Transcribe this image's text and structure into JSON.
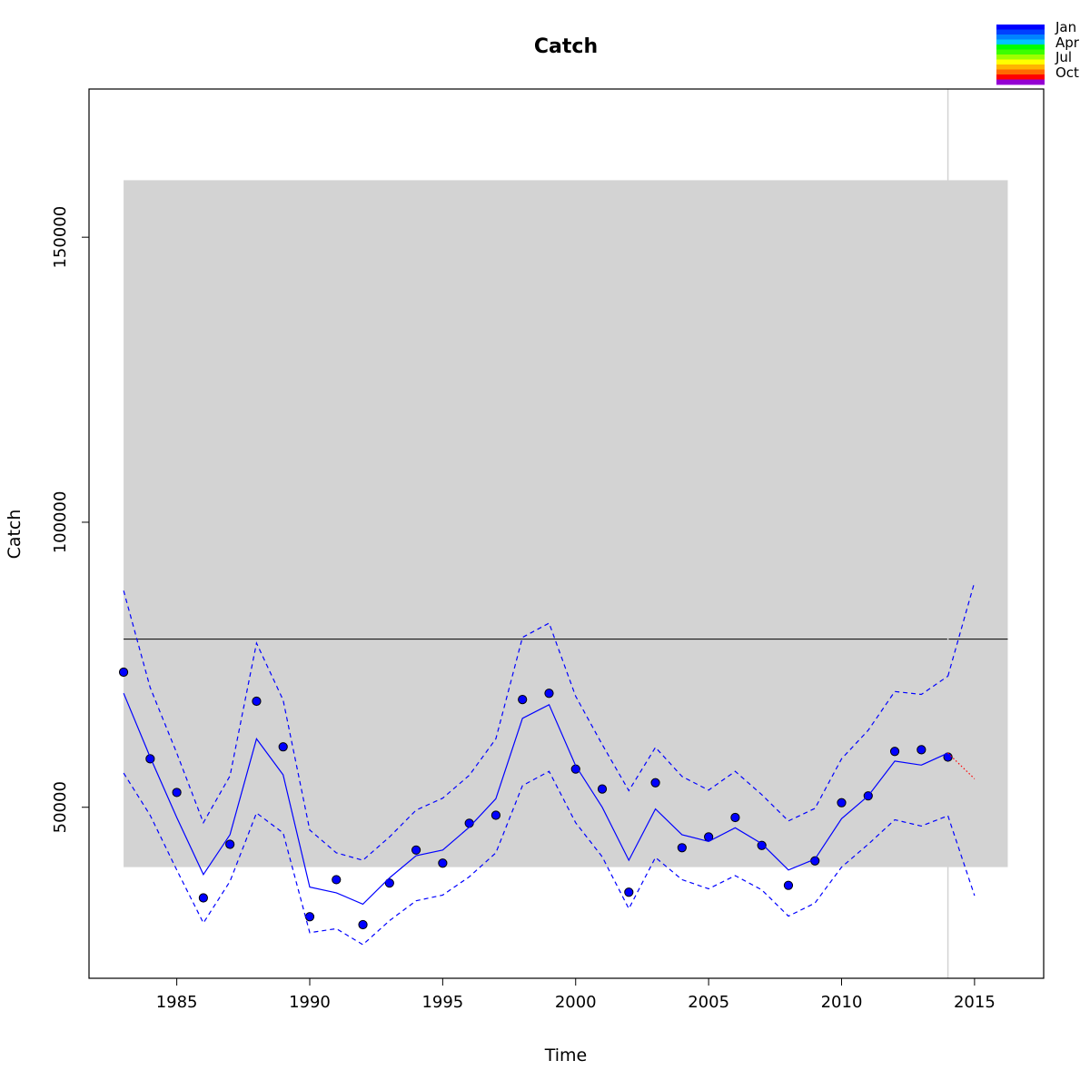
{
  "chart_data": {
    "type": "line",
    "title": "Catch",
    "xlabel": "Time",
    "ylabel": "Catch",
    "xlim": [
      1981.7,
      2017.6
    ],
    "ylim": [
      20000,
      176000
    ],
    "x_ticks": [
      1985,
      1990,
      1995,
      2000,
      2005,
      2010,
      2015
    ],
    "y_ticks": [
      50000,
      100000,
      150000
    ],
    "grid": false,
    "shaded_band": {
      "x": [
        1983,
        2016.25
      ],
      "y": [
        39500,
        160000
      ],
      "color": "#d3d3d3"
    },
    "reference_line": {
      "y": 79500,
      "color": "#000000"
    },
    "vertical_line": {
      "x": 2014,
      "color": "#d3d3d3"
    },
    "series": [
      {
        "role": "observed",
        "style": "points",
        "color": "#0000ff",
        "x": [
          1983,
          1984,
          1985,
          1986,
          1987,
          1988,
          1989,
          1990,
          1991,
          1992,
          1993,
          1994,
          1995,
          1996,
          1997,
          1998,
          1999,
          2000,
          2001,
          2002,
          2003,
          2004,
          2005,
          2006,
          2007,
          2008,
          2009,
          2010,
          2011,
          2012,
          2013,
          2014
        ],
        "values": [
          73700,
          58500,
          52600,
          34100,
          43500,
          68600,
          60600,
          30800,
          37300,
          29400,
          36700,
          42500,
          40200,
          47200,
          48600,
          68900,
          70000,
          56700,
          53200,
          35100,
          54300,
          42900,
          44800,
          48200,
          43300,
          36300,
          40600,
          50800,
          52000,
          59800,
          60100,
          58800
        ]
      },
      {
        "role": "fitted",
        "style": "solid",
        "color": "#0000ff",
        "x": [
          1983,
          1984,
          1985,
          1986,
          1987,
          1988,
          1989,
          1990,
          1991,
          1992,
          1993,
          1994,
          1995,
          1996,
          1997,
          1998,
          1999,
          2000,
          2001,
          2002,
          2003,
          2004,
          2005,
          2006,
          2007,
          2008,
          2009,
          2010,
          2011,
          2012,
          2013,
          2014
        ],
        "values": [
          70000,
          58800,
          48200,
          38200,
          45200,
          62000,
          55700,
          36000,
          35000,
          33000,
          37600,
          41500,
          42500,
          46500,
          51500,
          65600,
          68000,
          57300,
          50000,
          40700,
          49700,
          45200,
          44000,
          46400,
          43600,
          39000,
          40900,
          48000,
          52000,
          58100,
          57400,
          59500
        ]
      },
      {
        "role": "upper",
        "style": "dashed",
        "color": "#0000ff",
        "x": [
          1983,
          1984,
          1985,
          1986,
          1987,
          1988,
          1989,
          1990,
          1991,
          1992,
          1993,
          1994,
          1995,
          1996,
          1997,
          1998,
          1999,
          2000,
          2001,
          2002,
          2003,
          2004,
          2005,
          2006,
          2007,
          2008,
          2009,
          2010,
          2011,
          2012,
          2013,
          2014
        ],
        "values": [
          88000,
          71000,
          59500,
          47300,
          55500,
          78800,
          68800,
          46000,
          42000,
          40700,
          44800,
          49500,
          51600,
          55600,
          62000,
          79800,
          82300,
          69500,
          61000,
          52900,
          60500,
          55400,
          53000,
          56300,
          52200,
          47600,
          49800,
          58500,
          63500,
          70300,
          69800,
          73000
        ]
      },
      {
        "role": "lower",
        "style": "dashed",
        "color": "#0000ff",
        "x": [
          1983,
          1984,
          1985,
          1986,
          1987,
          1988,
          1989,
          1990,
          1991,
          1992,
          1993,
          1994,
          1995,
          1996,
          1997,
          1998,
          1999,
          2000,
          2001,
          2002,
          2003,
          2004,
          2005,
          2006,
          2007,
          2008,
          2009,
          2010,
          2011,
          2012,
          2013,
          2014
        ],
        "values": [
          56000,
          48600,
          39000,
          29700,
          37000,
          49000,
          45500,
          28000,
          28700,
          25900,
          30100,
          33600,
          34600,
          37800,
          42000,
          53800,
          56300,
          47300,
          41300,
          32200,
          41200,
          37300,
          35700,
          38000,
          35500,
          30900,
          33200,
          39500,
          43500,
          47800,
          46700,
          48500
        ]
      },
      {
        "role": "forecast-mean",
        "style": "dotted",
        "color": "#ff0000",
        "x": [
          2014,
          2015
        ],
        "values": [
          59500,
          55000
        ]
      },
      {
        "role": "forecast-upper",
        "style": "dashed",
        "color": "#0000ff",
        "x": [
          2014,
          2015
        ],
        "values": [
          73000,
          89500
        ]
      },
      {
        "role": "forecast-lower",
        "style": "dashed",
        "color": "#0000ff",
        "x": [
          2014,
          2015
        ],
        "values": [
          48500,
          34500
        ]
      }
    ],
    "legend": {
      "placement": "top-right",
      "labels": [
        "Jan",
        "Apr",
        "Jul",
        "Oct"
      ],
      "colors": [
        "#0000ff",
        "#0041ff",
        "#0083ff",
        "#00c4ff",
        "#00ff00",
        "#3bff00",
        "#9dff00",
        "#ffff00",
        "#ffb400",
        "#ff6900",
        "#ff0000",
        "#9400d3"
      ]
    }
  }
}
